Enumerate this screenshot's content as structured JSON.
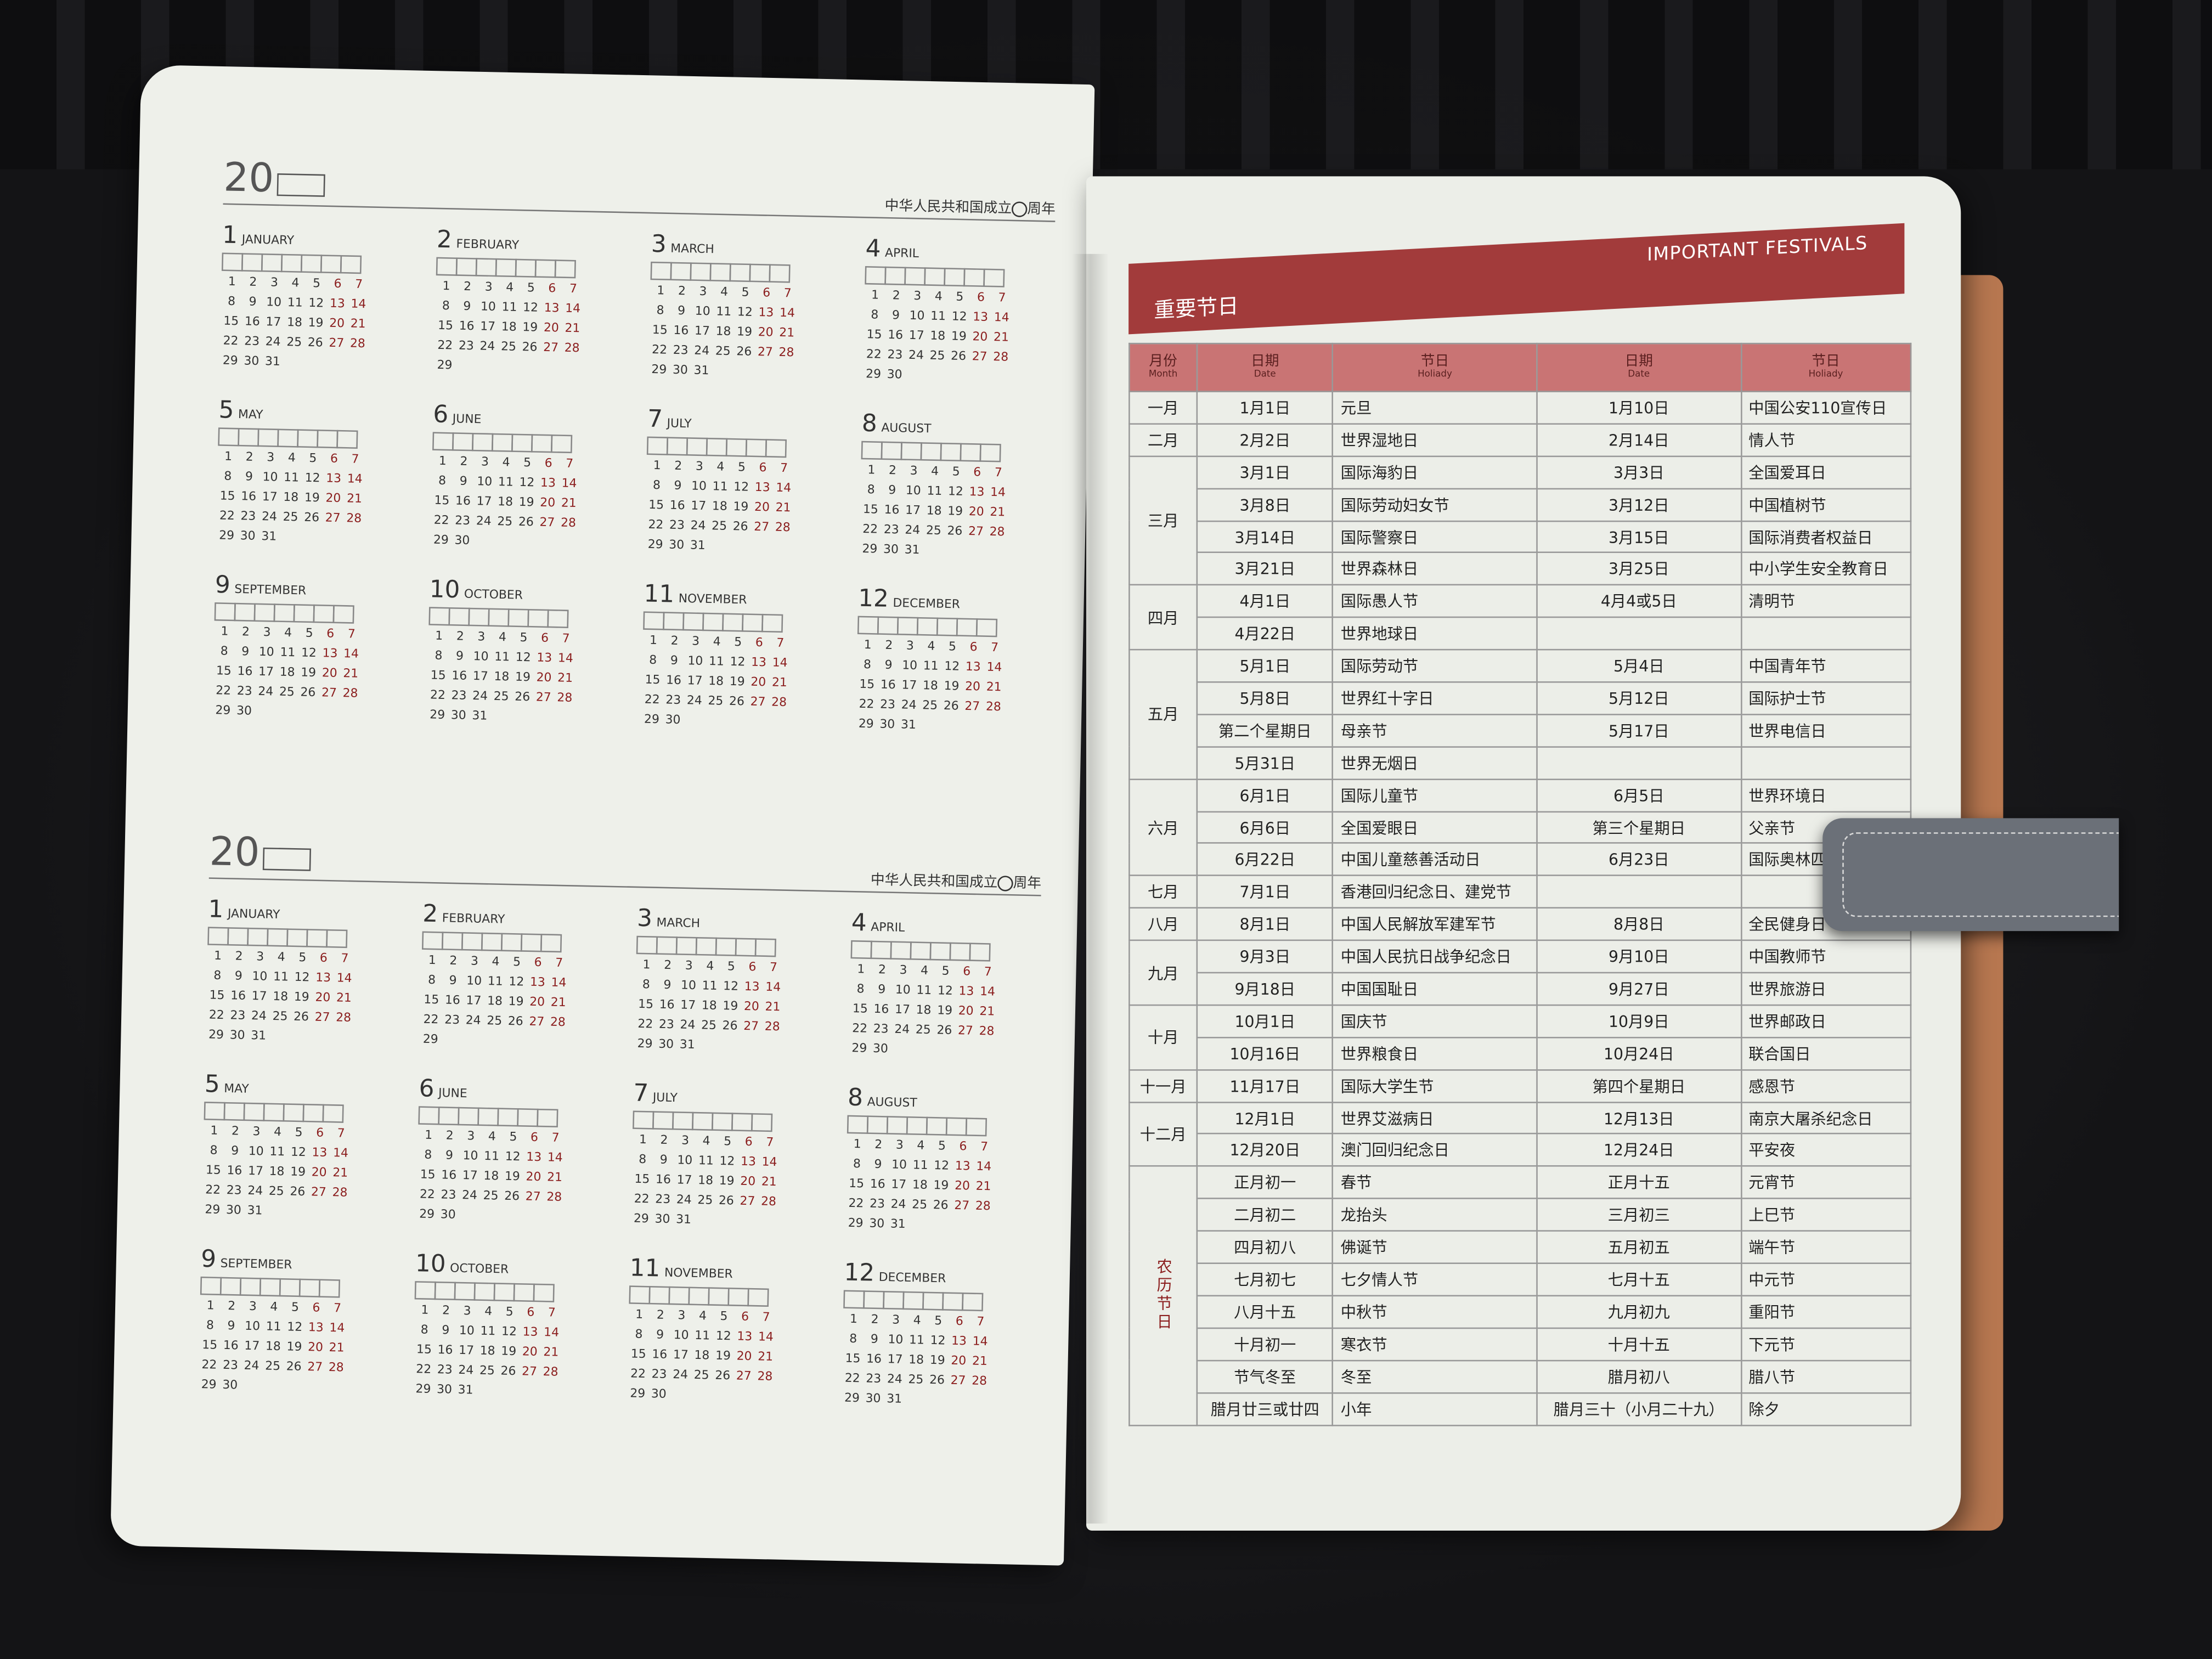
{
  "left_page": {
    "year_blocks": [
      {
        "year_prefix": "20",
        "subtitle": "中华人民共和国成立",
        "subtitle_suffix": "周年"
      },
      {
        "year_prefix": "20",
        "subtitle": "中华人民共和国成立",
        "subtitle_suffix": "周年"
      }
    ],
    "months": [
      {
        "num": "1",
        "name": "JANUARY",
        "days": 31
      },
      {
        "num": "2",
        "name": "FEBRUARY",
        "days": 29
      },
      {
        "num": "3",
        "name": "MARCH",
        "days": 31
      },
      {
        "num": "4",
        "name": "APRIL",
        "days": 30
      },
      {
        "num": "5",
        "name": "MAY",
        "days": 31
      },
      {
        "num": "6",
        "name": "JUNE",
        "days": 30
      },
      {
        "num": "7",
        "name": "JULY",
        "days": 31
      },
      {
        "num": "8",
        "name": "AUGUST",
        "days": 31
      },
      {
        "num": "9",
        "name": "SEPTEMBER",
        "days": 30
      },
      {
        "num": "10",
        "name": "OCTOBER",
        "days": 31
      },
      {
        "num": "11",
        "name": "NOVEMBER",
        "days": 30
      },
      {
        "num": "12",
        "name": "DECEMBER",
        "days": 31
      }
    ]
  },
  "right_page": {
    "title_cn": "重要节日",
    "title_en": "IMPORTANT FESTIVALS",
    "headers": {
      "month": "月份",
      "month_en": "Month",
      "date": "日期",
      "date_en": "Date",
      "holiday": "节日",
      "holiday_en": "Holiady"
    },
    "groups": [
      {
        "month": "一月",
        "rows": [
          [
            "1月1日",
            "元旦",
            "1月10日",
            "中国公安110宣传日"
          ]
        ]
      },
      {
        "month": "二月",
        "rows": [
          [
            "2月2日",
            "世界湿地日",
            "2月14日",
            "情人节"
          ]
        ]
      },
      {
        "month": "三月",
        "rows": [
          [
            "3月1日",
            "国际海豹日",
            "3月3日",
            "全国爱耳日"
          ],
          [
            "3月8日",
            "国际劳动妇女节",
            "3月12日",
            "中国植树节"
          ],
          [
            "3月14日",
            "国际警察日",
            "3月15日",
            "国际消费者权益日"
          ],
          [
            "3月21日",
            "世界森林日",
            "3月25日",
            "中小学生安全教育日"
          ]
        ]
      },
      {
        "month": "四月",
        "rows": [
          [
            "4月1日",
            "国际愚人节",
            "4月4或5日",
            "清明节"
          ],
          [
            "4月22日",
            "世界地球日",
            "",
            ""
          ]
        ]
      },
      {
        "month": "五月",
        "rows": [
          [
            "5月1日",
            "国际劳动节",
            "5月4日",
            "中国青年节"
          ],
          [
            "5月8日",
            "世界红十字日",
            "5月12日",
            "国际护士节"
          ],
          [
            "第二个星期日",
            "母亲节",
            "5月17日",
            "世界电信日"
          ],
          [
            "5月31日",
            "世界无烟日",
            "",
            ""
          ]
        ]
      },
      {
        "month": "六月",
        "rows": [
          [
            "6月1日",
            "国际儿童节",
            "6月5日",
            "世界环境日"
          ],
          [
            "6月6日",
            "全国爱眼日",
            "第三个星期日",
            "父亲节"
          ],
          [
            "6月22日",
            "中国儿童慈善活动日",
            "6月23日",
            "国际奥林匹克日"
          ]
        ]
      },
      {
        "month": "七月",
        "rows": [
          [
            "7月1日",
            "香港回归纪念日、建党节",
            "",
            ""
          ]
        ]
      },
      {
        "month": "八月",
        "rows": [
          [
            "8月1日",
            "中国人民解放军建军节",
            "8月8日",
            "全民健身日"
          ]
        ]
      },
      {
        "month": "九月",
        "rows": [
          [
            "9月3日",
            "中国人民抗日战争纪念日",
            "9月10日",
            "中国教师节"
          ],
          [
            "9月18日",
            "中国国耻日",
            "9月27日",
            "世界旅游日"
          ]
        ]
      },
      {
        "month": "十月",
        "rows": [
          [
            "10月1日",
            "国庆节",
            "10月9日",
            "世界邮政日"
          ],
          [
            "10月16日",
            "世界粮食日",
            "10月24日",
            "联合国日"
          ]
        ]
      },
      {
        "month": "十一月",
        "rows": [
          [
            "11月17日",
            "国际大学生节",
            "第四个星期日",
            "感恩节"
          ]
        ]
      },
      {
        "month": "十二月",
        "rows": [
          [
            "12月1日",
            "世界艾滋病日",
            "12月13日",
            "南京大屠杀纪念日"
          ],
          [
            "12月20日",
            "澳门回归纪念日",
            "12月24日",
            "平安夜"
          ]
        ]
      },
      {
        "month": "农历节日",
        "lunar": true,
        "rows": [
          [
            "正月初一",
            "春节",
            "正月十五",
            "元宵节"
          ],
          [
            "二月初二",
            "龙抬头",
            "三月初三",
            "上巳节"
          ],
          [
            "四月初八",
            "佛诞节",
            "五月初五",
            "端午节"
          ],
          [
            "七月初七",
            "七夕情人节",
            "七月十五",
            "中元节"
          ],
          [
            "八月十五",
            "中秋节",
            "九月初九",
            "重阳节"
          ],
          [
            "十月初一",
            "寒衣节",
            "十月十五",
            "下元节"
          ],
          [
            "节气冬至",
            "冬至",
            "腊月初八",
            "腊八节"
          ],
          [
            "腊月廿三或廿四",
            "小年",
            "腊月三十（小月二十九）",
            "除夕"
          ]
        ]
      }
    ]
  },
  "colors": {
    "accent_red": "#a23b3b",
    "header_pink": "#c97474",
    "paper": "#eef0ea",
    "cover_brown": "#b77750",
    "strap_gray": "#6b7078"
  }
}
